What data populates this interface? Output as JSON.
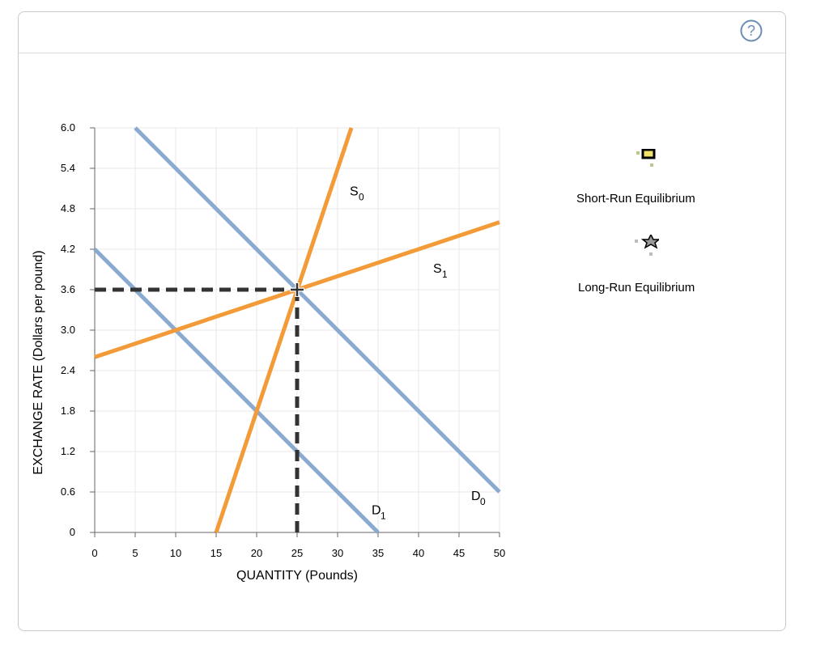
{
  "help": {
    "label": "?"
  },
  "legend": [
    {
      "label": "Short-Run Equilibrium",
      "icon": "short-run-equilibrium-icon"
    },
    {
      "label": "Long-Run Equilibrium",
      "icon": "long-run-equilibrium-icon"
    }
  ],
  "colors": {
    "demand": "#8aabcf",
    "supply": "#f29b38",
    "grid": "#e8e8e8",
    "dashed": "#333333"
  },
  "chart_data": {
    "type": "line",
    "xlabel": "QUANTITY (Pounds)",
    "ylabel": "EXCHANGE RATE (Dollars per pound)",
    "xlim": [
      0,
      50
    ],
    "ylim": [
      0,
      6
    ],
    "xticks": [
      0,
      5,
      10,
      15,
      20,
      25,
      30,
      35,
      40,
      45,
      50
    ],
    "yticks": [
      0,
      0.6,
      1.2,
      1.8,
      2.4,
      3.0,
      3.6,
      4.2,
      4.8,
      5.4,
      6.0
    ],
    "ytick_labels": [
      "0",
      "0.6",
      "1.2",
      "1.8",
      "2.4",
      "3.0",
      "3.6",
      "4.2",
      "4.8",
      "5.4",
      "6.0"
    ],
    "series": [
      {
        "name": "D0",
        "label_main": "D",
        "label_sub": "0",
        "kind": "demand",
        "points": [
          [
            5,
            6.0
          ],
          [
            50,
            0.6
          ]
        ],
        "label_at": [
          46.5,
          0.48
        ]
      },
      {
        "name": "D1",
        "label_main": "D",
        "label_sub": "1",
        "kind": "demand",
        "points": [
          [
            0,
            4.2
          ],
          [
            35,
            0.0
          ]
        ],
        "label_at": [
          34.2,
          0.27
        ]
      },
      {
        "name": "S0",
        "label_main": "S",
        "label_sub": "0",
        "kind": "supply",
        "points": [
          [
            15,
            0.0
          ],
          [
            31.7,
            6.0
          ]
        ],
        "label_at": [
          31.5,
          5.0
        ]
      },
      {
        "name": "S1",
        "label_main": "S",
        "label_sub": "1",
        "kind": "supply",
        "points": [
          [
            0,
            2.6
          ],
          [
            50,
            4.6
          ]
        ],
        "label_at": [
          41.8,
          3.85
        ]
      }
    ],
    "equilibrium": {
      "x": 25,
      "y": 3.6,
      "dashed_to_axes": true
    }
  }
}
